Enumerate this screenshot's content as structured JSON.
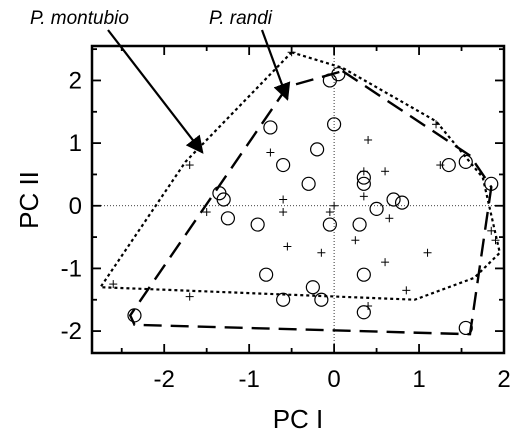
{
  "chart_data": {
    "type": "scatter",
    "xlabel": "PC I",
    "ylabel": "PC II",
    "xlim": [
      -2.85,
      2.0
    ],
    "ylim": [
      -2.35,
      2.55
    ],
    "x_ticks": [
      -2,
      -1,
      0,
      1,
      2
    ],
    "y_ticks": [
      -2,
      -1,
      0,
      1,
      2
    ],
    "x_tick_labels": [
      "-2",
      "-1",
      "0",
      "1",
      "2"
    ],
    "y_tick_labels": [
      "-2",
      "-1",
      "0",
      "1",
      "2"
    ],
    "reference_lines": {
      "x": 0,
      "y": 0,
      "style": "dotted"
    },
    "series": [
      {
        "name": "P. montubio",
        "marker": "plus",
        "hull_style": "dotted",
        "points": [
          [
            -0.5,
            2.45
          ],
          [
            1.2,
            1.3
          ],
          [
            1.25,
            0.65
          ],
          [
            -1.7,
            0.65
          ],
          [
            -0.75,
            0.85
          ],
          [
            0.4,
            1.05
          ],
          [
            0.35,
            0.55
          ],
          [
            0.6,
            0.55
          ],
          [
            -0.6,
            0.1
          ],
          [
            -0.6,
            -0.1
          ],
          [
            -1.5,
            -0.1
          ],
          [
            0.35,
            0.15
          ],
          [
            0,
            0
          ],
          [
            0.65,
            -0.2
          ],
          [
            -0.05,
            -0.1
          ],
          [
            0.25,
            -0.55
          ],
          [
            -0.55,
            -0.65
          ],
          [
            -0.15,
            -0.75
          ],
          [
            1.1,
            -0.75
          ],
          [
            0.6,
            -0.9
          ],
          [
            1.85,
            -0.4
          ],
          [
            -2.6,
            -1.25
          ],
          [
            0.85,
            -1.35
          ],
          [
            -1.7,
            -1.45
          ],
          [
            0.4,
            -1.6
          ],
          [
            1.9,
            -0.55
          ]
        ],
        "hull": [
          [
            -0.5,
            2.45
          ],
          [
            0.1,
            2.2
          ],
          [
            1.2,
            1.35
          ],
          [
            1.75,
            0.45
          ],
          [
            1.95,
            -0.75
          ],
          [
            1.65,
            -1.15
          ],
          [
            0.95,
            -1.5
          ],
          [
            -2.75,
            -1.3
          ],
          [
            -1.75,
            0.7
          ]
        ]
      },
      {
        "name": "P. randi",
        "marker": "circle",
        "hull_style": "dashed",
        "points": [
          [
            0.05,
            2.1
          ],
          [
            -0.05,
            2.0
          ],
          [
            -0.75,
            1.25
          ],
          [
            0,
            1.3
          ],
          [
            -0.2,
            0.9
          ],
          [
            -0.6,
            0.65
          ],
          [
            1.35,
            0.65
          ],
          [
            1.55,
            0.7
          ],
          [
            -0.3,
            0.35
          ],
          [
            0.35,
            0.35
          ],
          [
            0.35,
            0.45
          ],
          [
            0.7,
            0.1
          ],
          [
            0.8,
            0.05
          ],
          [
            0.5,
            -0.05
          ],
          [
            -1.35,
            0.2
          ],
          [
            -1.3,
            0.1
          ],
          [
            -1.25,
            -0.2
          ],
          [
            -0.9,
            -0.3
          ],
          [
            -0.05,
            -0.3
          ],
          [
            0.3,
            -0.3
          ],
          [
            1.85,
            0.35
          ],
          [
            -0.8,
            -1.1
          ],
          [
            0.35,
            -1.1
          ],
          [
            -0.25,
            -1.3
          ],
          [
            -0.15,
            -1.5
          ],
          [
            -0.6,
            -1.5
          ],
          [
            0.35,
            -1.7
          ],
          [
            -2.35,
            -1.75
          ],
          [
            1.55,
            -1.95
          ]
        ],
        "hull": [
          [
            0.1,
            2.15
          ],
          [
            1.6,
            0.8
          ],
          [
            1.85,
            0.3
          ],
          [
            1.6,
            -2.05
          ],
          [
            -2.35,
            -1.9
          ],
          [
            -2.4,
            -1.75
          ],
          [
            -0.55,
            1.9
          ]
        ]
      }
    ],
    "annotations": [
      {
        "text": "P. montubio",
        "arrow_to": [
          -1.55,
          0.85
        ]
      },
      {
        "text": "P. randi",
        "arrow_to": [
          -0.55,
          1.7
        ]
      }
    ]
  }
}
